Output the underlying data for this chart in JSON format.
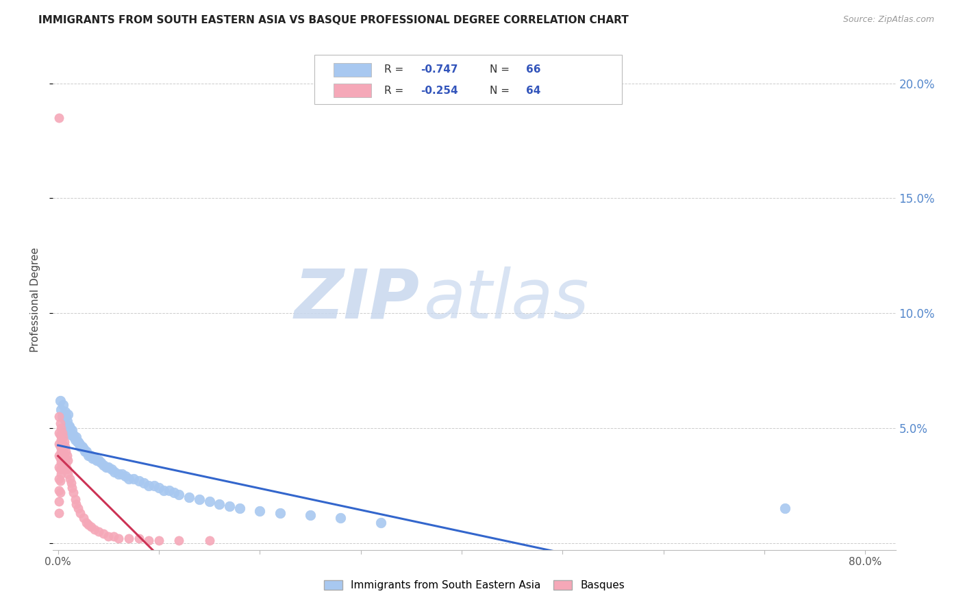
{
  "title": "IMMIGRANTS FROM SOUTH EASTERN ASIA VS BASQUE PROFESSIONAL DEGREE CORRELATION CHART",
  "source": "Source: ZipAtlas.com",
  "ylabel": "Professional Degree",
  "xlim": [
    -0.005,
    0.83
  ],
  "ylim": [
    -0.003,
    0.215
  ],
  "blue_R": -0.747,
  "blue_N": 66,
  "pink_R": -0.254,
  "pink_N": 64,
  "blue_color": "#a8c8f0",
  "pink_color": "#f5a8b8",
  "blue_line_color": "#3366cc",
  "pink_line_color": "#cc3355",
  "background_color": "#ffffff",
  "grid_color": "#cccccc",
  "legend_labels": [
    "Immigrants from South Eastern Asia",
    "Basques"
  ],
  "watermark_zip_color": "#c8d8ee",
  "watermark_atlas_color": "#c8d8ee",
  "right_tick_color": "#5588cc",
  "title_color": "#222222",
  "source_color": "#999999"
}
